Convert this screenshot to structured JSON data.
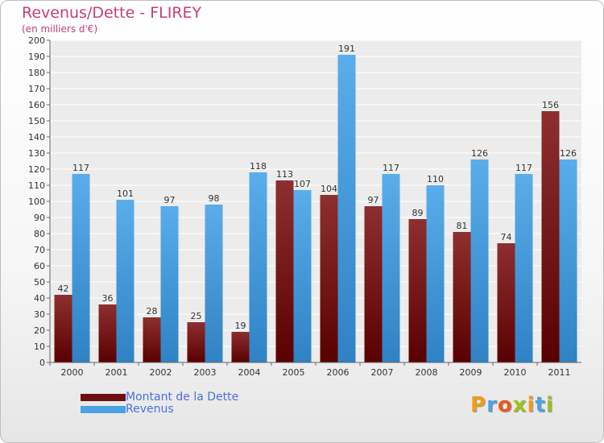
{
  "header": {
    "title": "Revenus/Dette - FLIREY",
    "subtitle": "(en milliers d'€)"
  },
  "legend": [
    {
      "label": "Montant de la Dette",
      "color": "#6b0f12"
    },
    {
      "label": "Revenus",
      "color": "#4ba3e3"
    }
  ],
  "logo": {
    "letters": [
      "P",
      "r",
      "o",
      "x",
      "i",
      "t",
      "i"
    ],
    "colors": [
      "#f29a1c",
      "#4aa3df",
      "#e85b1e",
      "#9bc31c",
      "#f29a1c",
      "#4aa3df",
      "#9bc31c"
    ]
  },
  "chart_data": {
    "type": "bar",
    "categories": [
      "2000",
      "2001",
      "2002",
      "2003",
      "2004",
      "2005",
      "2006",
      "2007",
      "2008",
      "2009",
      "2010",
      "2011"
    ],
    "series": [
      {
        "name": "Montant de la Dette",
        "values": [
          42,
          36,
          28,
          25,
          19,
          113,
          104,
          97,
          89,
          81,
          74,
          156
        ],
        "color_top": "#8e2f2f",
        "color_bottom": "#5a0000"
      },
      {
        "name": "Revenus",
        "values": [
          117,
          101,
          97,
          98,
          118,
          107,
          191,
          117,
          110,
          126,
          117,
          126
        ],
        "color_top": "#5aadea",
        "color_bottom": "#2f82c4"
      }
    ],
    "ylim": [
      0,
      200
    ],
    "ytick_step": 10,
    "grid": true,
    "legend_position": "bottom-left"
  }
}
